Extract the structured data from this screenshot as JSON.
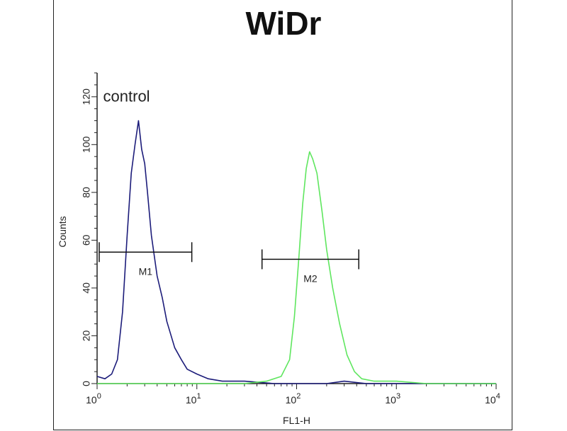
{
  "chart_data": {
    "type": "line",
    "title": "WiDr",
    "xlabel": "FL1-H",
    "ylabel": "Counts",
    "x_scale": "log",
    "xlim": [
      1,
      10000
    ],
    "ylim": [
      0,
      130
    ],
    "x_ticks": [
      {
        "value": 1,
        "base": "10",
        "exp": "0"
      },
      {
        "value": 10,
        "base": "10",
        "exp": "1"
      },
      {
        "value": 100,
        "base": "10",
        "exp": "2"
      },
      {
        "value": 1000,
        "base": "10",
        "exp": "3"
      },
      {
        "value": 10000,
        "base": "10",
        "exp": "4"
      }
    ],
    "y_ticks": [
      0,
      20,
      40,
      60,
      80,
      100,
      120
    ],
    "grid": false,
    "annotations": [
      {
        "text": "control",
        "x": 1.15,
        "y": 118
      }
    ],
    "markers": [
      {
        "label": "M1",
        "x_start": 1.05,
        "x_end": 8.9,
        "y": 55
      },
      {
        "label": "M2",
        "x_start": 45,
        "x_end": 420,
        "y": 52
      }
    ],
    "series": [
      {
        "color": "#1c1c7a",
        "points": [
          [
            1.0,
            3
          ],
          [
            1.2,
            2
          ],
          [
            1.4,
            4
          ],
          [
            1.6,
            10
          ],
          [
            1.8,
            30
          ],
          [
            2.0,
            62
          ],
          [
            2.2,
            88
          ],
          [
            2.4,
            100
          ],
          [
            2.6,
            110
          ],
          [
            2.8,
            98
          ],
          [
            3.0,
            92
          ],
          [
            3.2,
            80
          ],
          [
            3.5,
            62
          ],
          [
            4.0,
            45
          ],
          [
            4.5,
            36
          ],
          [
            5.0,
            26
          ],
          [
            6.0,
            15
          ],
          [
            7.0,
            10
          ],
          [
            8.0,
            6
          ],
          [
            10.0,
            4
          ],
          [
            13.0,
            2
          ],
          [
            18.0,
            1
          ],
          [
            30.0,
            1
          ],
          [
            60.0,
            0
          ],
          [
            100,
            0
          ],
          [
            200,
            0
          ],
          [
            300,
            1
          ],
          [
            500,
            0
          ],
          [
            10000,
            0
          ]
        ]
      },
      {
        "color": "#5fe65f",
        "points": [
          [
            1.0,
            0
          ],
          [
            30,
            0
          ],
          [
            50,
            1
          ],
          [
            70,
            3
          ],
          [
            85,
            10
          ],
          [
            95,
            28
          ],
          [
            105,
            52
          ],
          [
            115,
            75
          ],
          [
            125,
            90
          ],
          [
            135,
            97
          ],
          [
            145,
            94
          ],
          [
            160,
            88
          ],
          [
            180,
            72
          ],
          [
            200,
            56
          ],
          [
            230,
            40
          ],
          [
            270,
            25
          ],
          [
            320,
            12
          ],
          [
            380,
            5
          ],
          [
            450,
            2
          ],
          [
            600,
            1
          ],
          [
            1000,
            1
          ],
          [
            2000,
            0
          ],
          [
            10000,
            0
          ]
        ]
      }
    ]
  }
}
